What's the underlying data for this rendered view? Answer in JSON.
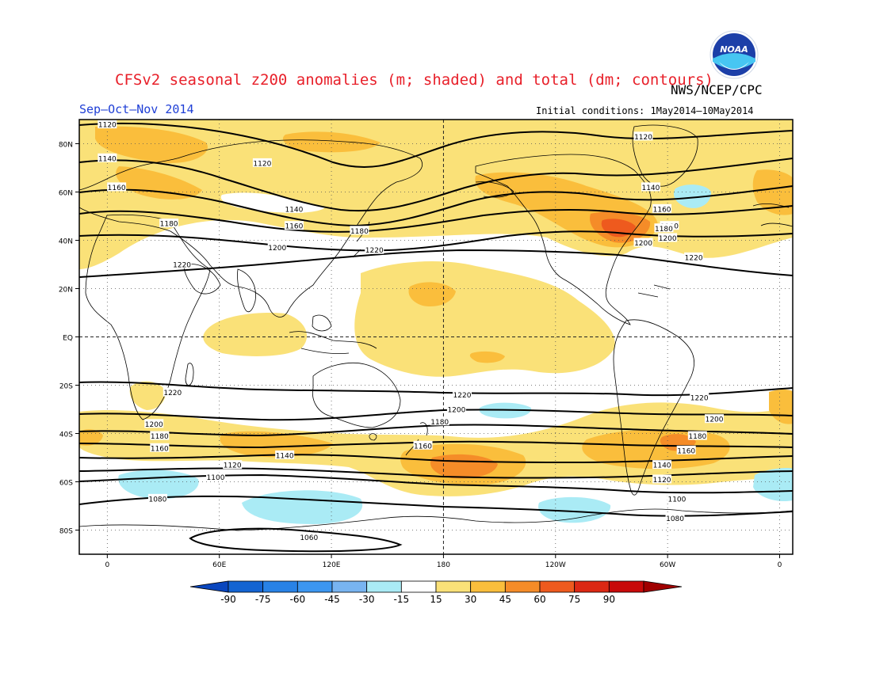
{
  "header": {
    "title": "CFSv2 seasonal z200 anomalies (m; shaded) and total (dm; contours)",
    "agency": "NWS/NCEP/CPC",
    "season": "Sep–Oct–Nov 2014",
    "initial_conditions": "Initial conditions: 1May2014–10May2014",
    "logo_text": "NOAA"
  },
  "axes": {
    "lat_ticks": [
      {
        "lat": 80,
        "label": "80N"
      },
      {
        "lat": 60,
        "label": "60N"
      },
      {
        "lat": 40,
        "label": "40N"
      },
      {
        "lat": 20,
        "label": "20N"
      },
      {
        "lat": 0,
        "label": "EQ"
      },
      {
        "lat": -20,
        "label": "20S"
      },
      {
        "lat": -40,
        "label": "40S"
      },
      {
        "lat": -60,
        "label": "60S"
      },
      {
        "lat": -80,
        "label": "80S"
      }
    ],
    "lon_ticks": [
      {
        "lon": 0,
        "label": "0"
      },
      {
        "lon": 60,
        "label": "60E"
      },
      {
        "lon": 120,
        "label": "120E"
      },
      {
        "lon": 180,
        "label": "180"
      },
      {
        "lon": 240,
        "label": "120W"
      },
      {
        "lon": 300,
        "label": "60W"
      },
      {
        "lon": 360,
        "label": "0"
      }
    ],
    "lon_range": [
      -15,
      367
    ],
    "lat_range": [
      -90,
      90
    ],
    "grid": "dotted"
  },
  "colorbar": {
    "labels": [
      "-90",
      "-75",
      "-60",
      "-45",
      "-30",
      "-15",
      "15",
      "30",
      "45",
      "60",
      "75",
      "90"
    ],
    "colors": [
      "#1464d2",
      "#2882e6",
      "#3c96f0",
      "#78b4f0",
      "#aaebf5",
      "#ffffff",
      "#fae178",
      "#fabe3c",
      "#f58c28",
      "#ee5a1e",
      "#dc2814",
      "#c80a0a"
    ],
    "below_color": "#0a46be",
    "above_color": "#a00000"
  },
  "contour_labels": [
    {
      "lon": 0,
      "lat": 88,
      "text": "1120"
    },
    {
      "lon": 83,
      "lat": 72,
      "text": "1120"
    },
    {
      "lon": 287,
      "lat": 83,
      "text": "1120"
    },
    {
      "lon": 0,
      "lat": 74,
      "text": "1140"
    },
    {
      "lon": 100,
      "lat": 53,
      "text": "1140"
    },
    {
      "lon": 291,
      "lat": 62,
      "text": "1140"
    },
    {
      "lon": 5,
      "lat": 62,
      "text": "1160"
    },
    {
      "lon": 100,
      "lat": 46,
      "text": "1160"
    },
    {
      "lon": 297,
      "lat": 53,
      "text": "1160"
    },
    {
      "lon": 33,
      "lat": 47,
      "text": "1180"
    },
    {
      "lon": 135,
      "lat": 44,
      "text": "1180"
    },
    {
      "lon": 301,
      "lat": 46,
      "text": "1180"
    },
    {
      "lon": 91,
      "lat": 37,
      "text": "1200"
    },
    {
      "lon": 300,
      "lat": 41,
      "text": "1200"
    },
    {
      "lon": 40,
      "lat": 30,
      "text": "1220"
    },
    {
      "lon": 143,
      "lat": 36,
      "text": "1220"
    },
    {
      "lon": 314,
      "lat": 33,
      "text": "1220"
    },
    {
      "lon": 35,
      "lat": -23,
      "text": "1220"
    },
    {
      "lon": 190,
      "lat": -24,
      "text": "1220"
    },
    {
      "lon": 317,
      "lat": -25,
      "text": "1220"
    },
    {
      "lon": 187,
      "lat": -30,
      "text": "1200"
    },
    {
      "lon": 25,
      "lat": -36,
      "text": "1200"
    },
    {
      "lon": 325,
      "lat": -34,
      "text": "1200"
    },
    {
      "lon": 28,
      "lat": -41,
      "text": "1180"
    },
    {
      "lon": 178,
      "lat": -35,
      "text": "1180"
    },
    {
      "lon": 316,
      "lat": -41,
      "text": "1180"
    },
    {
      "lon": 28,
      "lat": -46,
      "text": "1160"
    },
    {
      "lon": 169,
      "lat": -45,
      "text": "1160"
    },
    {
      "lon": 310,
      "lat": -47,
      "text": "1160"
    },
    {
      "lon": 95,
      "lat": -49,
      "text": "1140"
    },
    {
      "lon": 297,
      "lat": -53,
      "text": "1140"
    },
    {
      "lon": 67,
      "lat": -53,
      "text": "1120"
    },
    {
      "lon": 297,
      "lat": -59,
      "text": "1120"
    },
    {
      "lon": 58,
      "lat": -58,
      "text": "1100"
    },
    {
      "lon": 305,
      "lat": -67,
      "text": "1100"
    },
    {
      "lon": 27,
      "lat": -67,
      "text": "1080"
    },
    {
      "lon": 304,
      "lat": -75,
      "text": "1080"
    },
    {
      "lon": 108,
      "lat": -83,
      "text": "1060"
    },
    {
      "lon": 298,
      "lat": 45,
      "text": "1180"
    },
    {
      "lon": 287,
      "lat": 39,
      "text": "1200"
    }
  ]
}
